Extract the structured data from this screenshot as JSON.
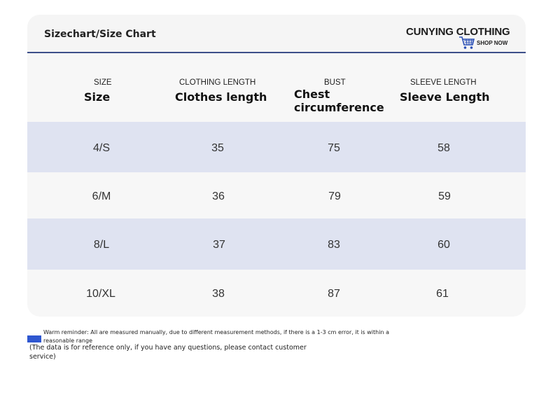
{
  "header": {
    "title": "Sizechart/Size Chart",
    "brand": "CUNYING CLOTHING",
    "shop_now": "SHOP NOW",
    "icon": "shopping-cart-icon",
    "accent_color": "#3d4f8a"
  },
  "table": {
    "columns": [
      {
        "small": "SIZE",
        "big": "Size"
      },
      {
        "small": "CLOTHING LENGTH",
        "big": "Clothes length"
      },
      {
        "small": "BUST",
        "big": "Chest circumference"
      },
      {
        "small": "SLEEVE LENGTH",
        "big": "Sleeve Length"
      }
    ],
    "rows": [
      [
        "4/S",
        "35",
        "75",
        "58"
      ],
      [
        "6/M",
        "36",
        "79",
        "59"
      ],
      [
        "8/L",
        "37",
        "83",
        "60"
      ],
      [
        "10/XL",
        "38",
        "87",
        "61"
      ]
    ],
    "row_alt_color": "#dfe3f1"
  },
  "notes": {
    "reminder": "Warm reminder: All are measured manually, due to different measurement methods, if there is a 1-3 cm error, it is within a reasonable range",
    "reference": "(The data is for reference only, if you have any questions, please contact customer service)",
    "marker_color": "#2f57d0"
  }
}
